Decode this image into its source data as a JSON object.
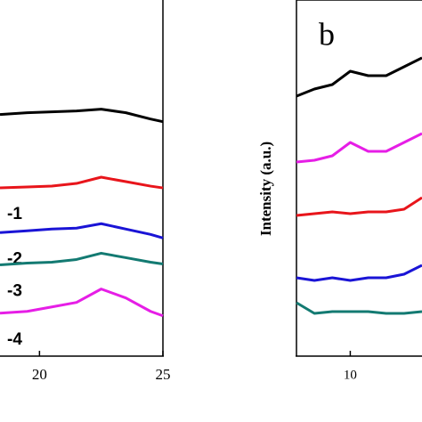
{
  "chart_data": [
    {
      "type": "line",
      "x": [
        18.4,
        19.5,
        20.5,
        21.5,
        22.5,
        23.5,
        24.5,
        25
      ],
      "xlim": [
        18.4,
        25
      ],
      "xticks": [
        20,
        25
      ],
      "ylim": [
        0,
        100
      ],
      "series": [
        {
          "color": "#000000",
          "values": [
            67.5,
            68,
            68.25,
            68.5,
            69,
            68,
            66.25,
            65.5
          ]
        },
        {
          "name": "-1",
          "color": "#e8151b",
          "values": [
            47,
            47.25,
            47.5,
            48.25,
            50,
            48.75,
            47.5,
            47
          ]
        },
        {
          "name": "-2",
          "color": "#1a14d6",
          "values": [
            34.5,
            35,
            35.5,
            35.75,
            37,
            35.5,
            34,
            33
          ]
        },
        {
          "name": "-3",
          "color": "#137a72",
          "values": [
            25.5,
            26,
            26.25,
            27,
            28.75,
            27.5,
            26.25,
            25.75
          ]
        },
        {
          "name": "-4",
          "color": "#e61ee6",
          "values": [
            12,
            12.5,
            13.75,
            15,
            18.75,
            16.25,
            12.5,
            11.25
          ]
        }
      ]
    },
    {
      "type": "line",
      "annotation": "b",
      "y_label": "Intensity (a.u.)",
      "x": [
        7,
        8,
        9,
        10,
        11,
        12,
        13,
        14
      ],
      "xlim": [
        7,
        14
      ],
      "xticks": [
        10
      ],
      "ylim": [
        0,
        100
      ],
      "series": [
        {
          "color": "#000000",
          "values": [
            73,
            75,
            76.25,
            80,
            78.75,
            78.75,
            81.25,
            83.75
          ]
        },
        {
          "color": "#e61ee6",
          "values": [
            54.5,
            55,
            56.25,
            60,
            57.5,
            57.5,
            60,
            62.5
          ]
        },
        {
          "color": "#e8151b",
          "values": [
            39.5,
            40,
            40.5,
            40,
            40.5,
            40.5,
            41.25,
            44.5
          ]
        },
        {
          "color": "#1a14d6",
          "values": [
            22,
            21.25,
            22,
            21.25,
            22,
            22,
            23,
            25.5
          ]
        },
        {
          "color": "#137a72",
          "values": [
            15,
            12,
            12.5,
            12.5,
            12.5,
            12,
            12,
            12.5
          ]
        }
      ]
    }
  ]
}
